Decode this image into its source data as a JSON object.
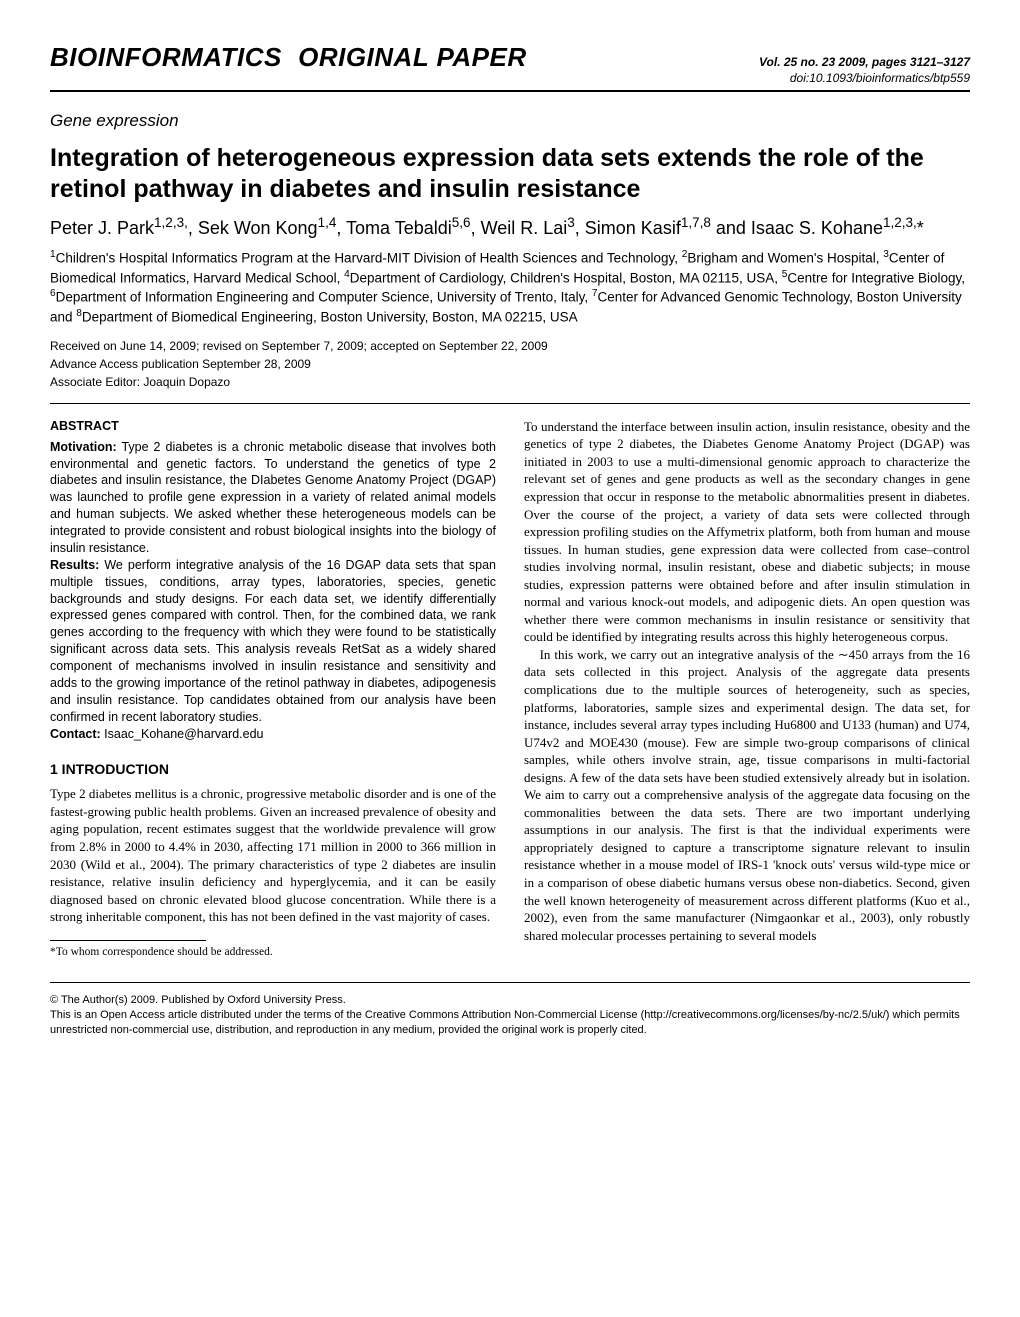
{
  "header": {
    "journal": "BIOINFORMATICS",
    "paper_type": "ORIGINAL PAPER",
    "vol_line": "Vol. 25 no. 23 2009, pages 3121–3127",
    "doi_line": "doi:10.1093/bioinformatics/btp559"
  },
  "section_label": "Gene expression",
  "title": "Integration of heterogeneous expression data sets extends the role of the retinol pathway in diabetes and insulin resistance",
  "authors_html": "Peter J. Park<sup>1,2,3,</sup>, Sek Won Kong<sup>1,4</sup>, Toma Tebaldi<sup>5,6</sup>, Weil R. Lai<sup>3</sup>, Simon Kasif<sup>1,7,8</sup> and Isaac S. Kohane<sup>1,2,3,</sup>*",
  "affiliations_html": "<sup>1</sup>Children's Hospital Informatics Program at the Harvard-MIT Division of Health Sciences and Technology, <sup>2</sup>Brigham and Women's Hospital, <sup>3</sup>Center of Biomedical Informatics, Harvard Medical School, <sup>4</sup>Department of Cardiology, Children's Hospital, Boston, MA 02115, USA, <sup>5</sup>Centre for Integrative Biology, <sup>6</sup>Department of Information Engineering and Computer Science, University of Trento, Italy, <sup>7</sup>Center for Advanced Genomic Technology, Boston University and <sup>8</sup>Department of Biomedical Engineering, Boston University, Boston, MA 02215, USA",
  "dates": {
    "received": "Received on June 14, 2009; revised on September 7, 2009; accepted on September 22, 2009",
    "advance": "Advance Access publication September 28, 2009",
    "editor": "Associate Editor: Joaquin Dopazo"
  },
  "abstract": {
    "heading": "ABSTRACT",
    "motivation_label": "Motivation:",
    "motivation": " Type 2 diabetes is a chronic metabolic disease that involves both environmental and genetic factors. To understand the genetics of type 2 diabetes and insulin resistance, the DIabetes Genome Anatomy Project (DGAP) was launched to profile gene expression in a variety of related animal models and human subjects. We asked whether these heterogeneous models can be integrated to provide consistent and robust biological insights into the biology of insulin resistance.",
    "results_label": "Results:",
    "results": " We perform integrative analysis of the 16 DGAP data sets that span multiple tissues, conditions, array types, laboratories, species, genetic backgrounds and study designs. For each data set, we identify differentially expressed genes compared with control. Then, for the combined data, we rank genes according to the frequency with which they were found to be statistically significant across data sets. This analysis reveals RetSat as a widely shared component of mechanisms involved in insulin resistance and sensitivity and adds to the growing importance of the retinol pathway in diabetes, adipogenesis and insulin resistance. Top candidates obtained from our analysis have been confirmed in recent laboratory studies.",
    "contact_label": "Contact:",
    "contact": " Isaac_Kohane@harvard.edu"
  },
  "intro": {
    "heading": "1   INTRODUCTION",
    "p1": "Type 2 diabetes mellitus is a chronic, progressive metabolic disorder and is one of the fastest-growing public health problems. Given an increased prevalence of obesity and aging population, recent estimates suggest that the worldwide prevalence will grow from 2.8% in 2000 to 4.4% in 2030, affecting 171 million in 2000 to 366 million in 2030 (Wild et al., 2004). The primary characteristics of type 2 diabetes are insulin resistance, relative insulin deficiency and hyperglycemia, and it can be easily diagnosed based on chronic elevated blood glucose concentration. While there is a strong inheritable component, this has not been defined in the vast majority of cases."
  },
  "right_col": {
    "p1": "To understand the interface between insulin action, insulin resistance, obesity and the genetics of type 2 diabetes, the Diabetes Genome Anatomy Project (DGAP) was initiated in 2003 to use a multi-dimensional genomic approach to characterize the relevant set of genes and gene products as well as the secondary changes in gene expression that occur in response to the metabolic abnormalities present in diabetes. Over the course of the project, a variety of data sets were collected through expression profiling studies on the Affymetrix platform, both from human and mouse tissues. In human studies, gene expression data were collected from case–control studies involving normal, insulin resistant, obese and diabetic subjects; in mouse studies, expression patterns were obtained before and after insulin stimulation in normal and various knock-out models, and adipogenic diets. An open question was whether there were common mechanisms in insulin resistance or sensitivity that could be identified by integrating results across this highly heterogeneous corpus.",
    "p2": "In this work, we carry out an integrative analysis of the ∼450 arrays from the 16 data sets collected in this project. Analysis of the aggregate data presents complications due to the multiple sources of heterogeneity, such as species, platforms, laboratories, sample sizes and experimental design. The data set, for instance, includes several array types including Hu6800 and U133 (human) and U74, U74v2 and MOE430 (mouse). Few are simple two-group comparisons of clinical samples, while others involve strain, age, tissue comparisons in multi-factorial designs. A few of the data sets have been studied extensively already but in isolation. We aim to carry out a comprehensive analysis of the aggregate data focusing on the commonalities between the data sets. There are two important underlying assumptions in our analysis. The first is that the individual experiments were appropriately designed to capture a transcriptome signature relevant to insulin resistance whether in a mouse model of IRS-1 'knock outs' versus wild-type mice or in a comparison of obese diabetic humans versus obese non-diabetics. Second, given the well known heterogeneity of measurement across different platforms (Kuo et al., 2002), even from the same manufacturer (Nimgaonkar et al., 2003), only robustly shared molecular processes pertaining to several models"
  },
  "footnote": "*To whom correspondence should be addressed.",
  "license": {
    "l1": "© The Author(s) 2009. Published by Oxford University Press.",
    "l2": "This is an Open Access article distributed under the terms of the Creative Commons Attribution Non-Commercial License (http://creativecommons.org/licenses/by-nc/2.5/uk/) which permits unrestricted non-commercial use, distribution, and reproduction in any medium, provided the original work is properly cited."
  }
}
